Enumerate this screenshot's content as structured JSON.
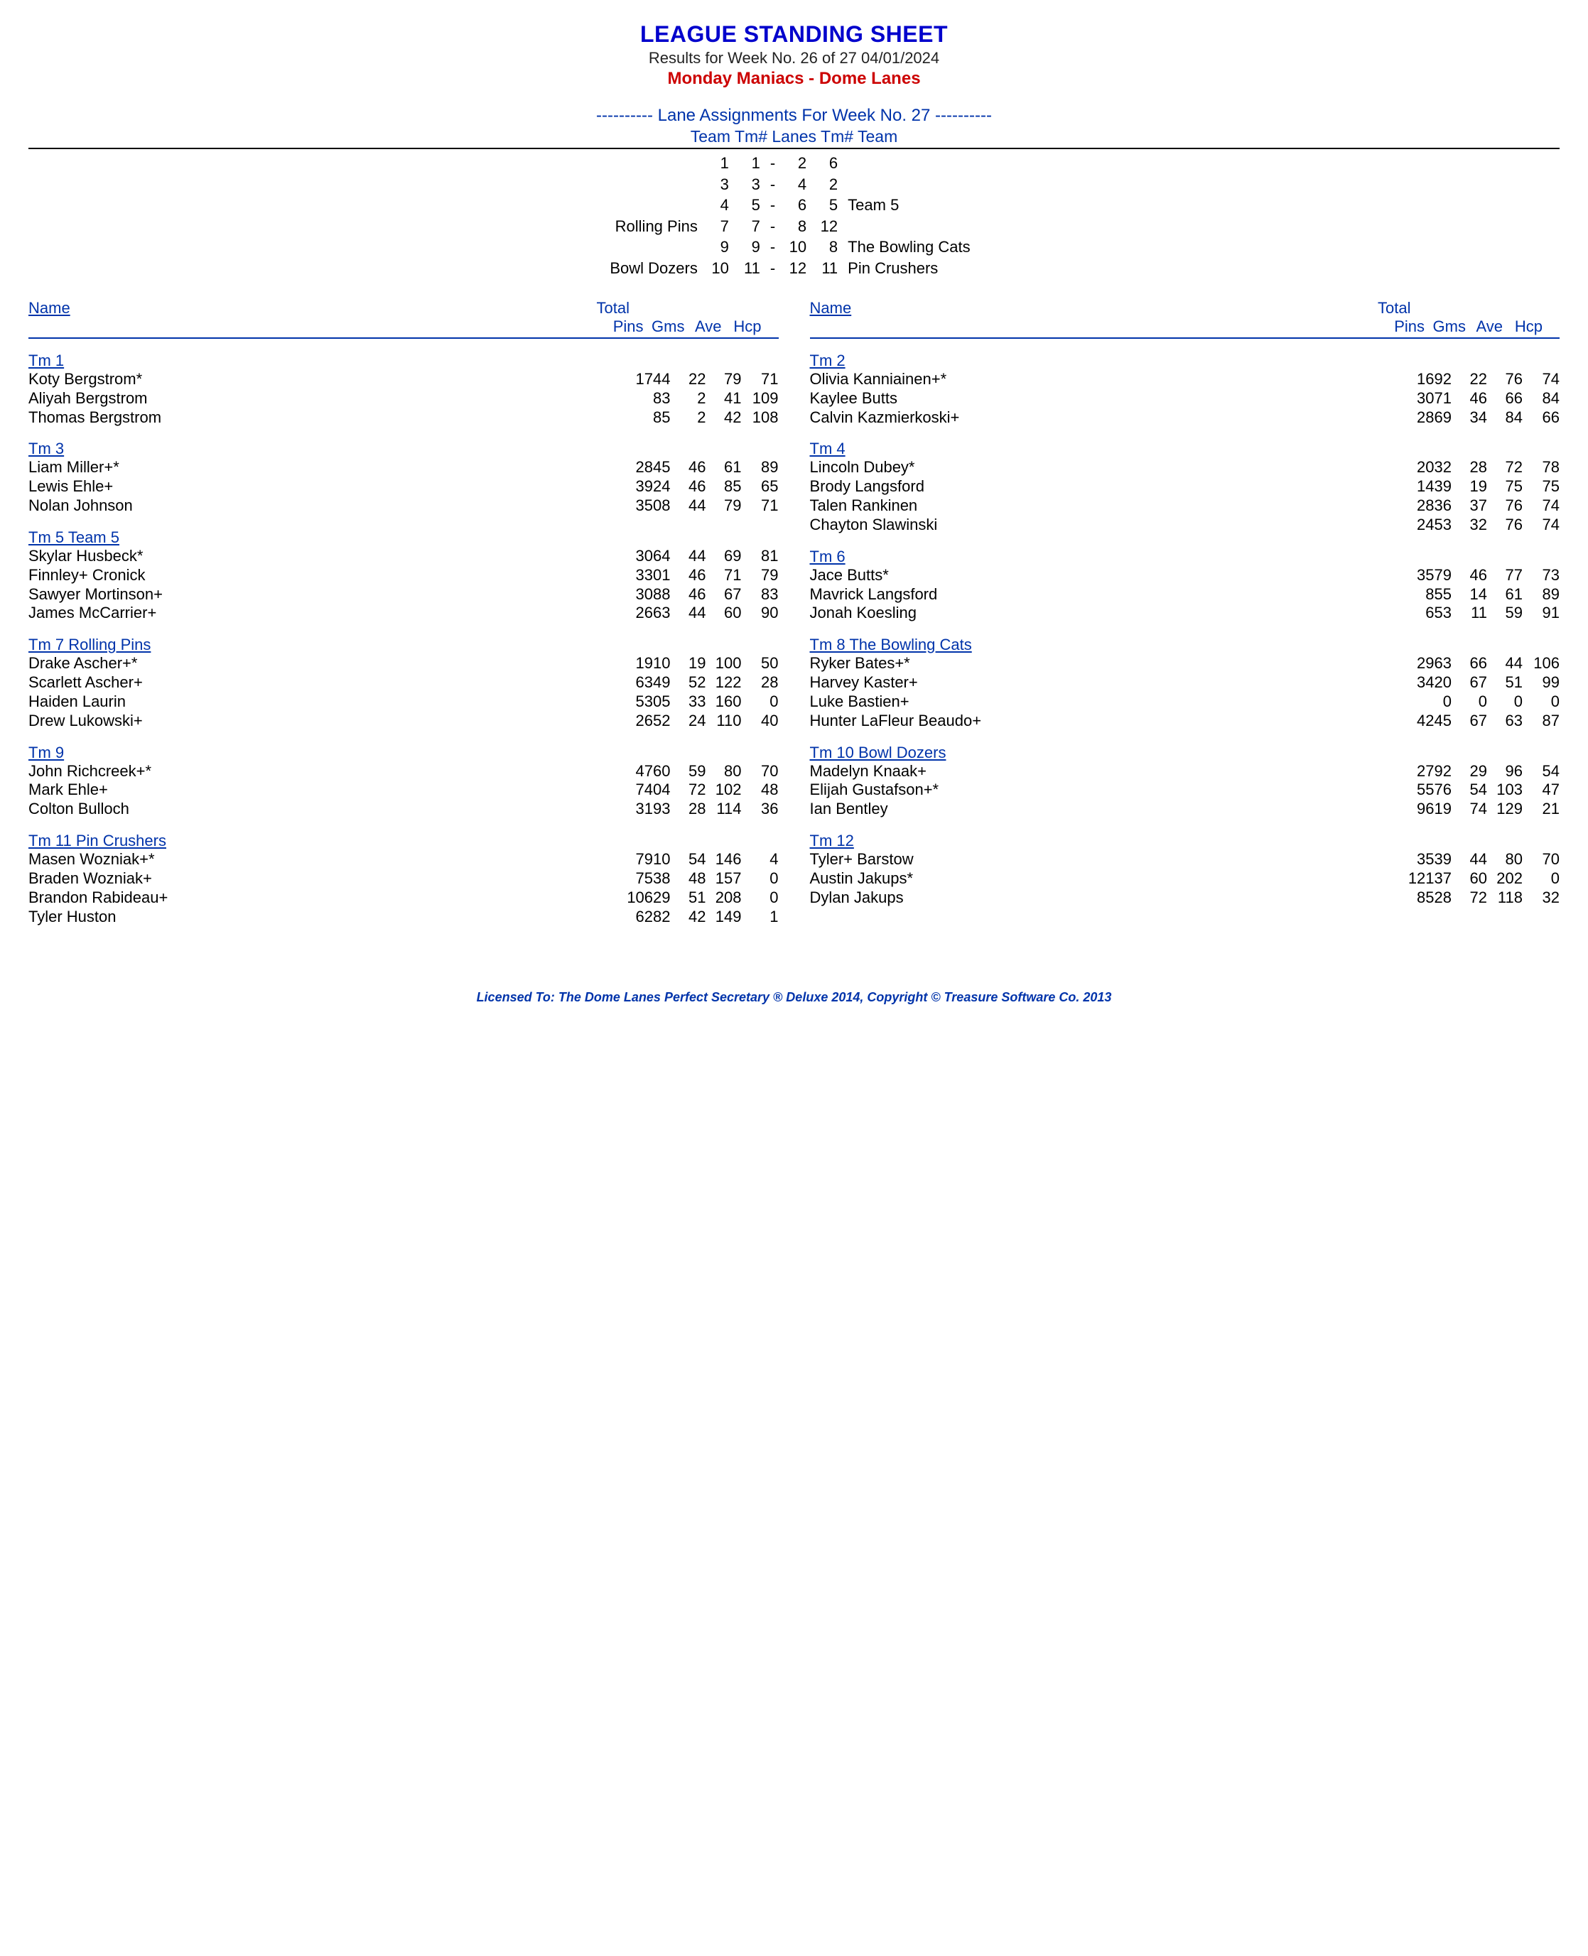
{
  "colors": {
    "title": "#0000cc",
    "accent": "#0033aa",
    "league": "#cc0000",
    "text": "#000000",
    "background": "#ffffff"
  },
  "typography": {
    "title_size": 32,
    "body_size": 22,
    "footer_size": 18,
    "font_family": "Arial"
  },
  "header": {
    "title": "LEAGUE STANDING SHEET",
    "subtitle": "Results for Week No. 26 of 27    04/01/2024",
    "league": "Monday Maniacs - Dome Lanes"
  },
  "lane_assignments": {
    "heading": "---------- Lane Assignments For Week No. 27 ----------",
    "columns": "Team    Tm#    Lanes   Tm#     Team",
    "rows": [
      {
        "lteam": "",
        "ltm": "1",
        "lanes": "1 - 2",
        "rtm": "6",
        "rteam": ""
      },
      {
        "lteam": "",
        "ltm": "3",
        "lanes": "3 - 4",
        "rtm": "2",
        "rteam": ""
      },
      {
        "lteam": "",
        "ltm": "4",
        "lanes": "5 - 6",
        "rtm": "5",
        "rteam": "Team 5"
      },
      {
        "lteam": "Rolling Pins",
        "ltm": "7",
        "lanes": "7 - 8",
        "rtm": "12",
        "rteam": ""
      },
      {
        "lteam": "",
        "ltm": "9",
        "lanes": "9 - 10",
        "rtm": "8",
        "rteam": "The Bowling Cats"
      },
      {
        "lteam": "Bowl Dozers",
        "ltm": "10",
        "lanes": "11 - 12",
        "rtm": "11",
        "rteam": "Pin Crushers"
      }
    ]
  },
  "column_headers": {
    "name": "Name",
    "total": "Total",
    "pins": "Pins",
    "gms": "Gms",
    "ave": "Ave",
    "hcp": "Hcp"
  },
  "left_teams": [
    {
      "name": "Tm 1",
      "players": [
        {
          "n": "Koty Bergstrom*",
          "pins": "1744",
          "gms": "22",
          "ave": "79",
          "hcp": "71"
        },
        {
          "n": "Aliyah Bergstrom",
          "pins": "83",
          "gms": "2",
          "ave": "41",
          "hcp": "109"
        },
        {
          "n": "Thomas Bergstrom",
          "pins": "85",
          "gms": "2",
          "ave": "42",
          "hcp": "108"
        }
      ]
    },
    {
      "name": "Tm 3",
      "players": [
        {
          "n": "Liam Miller+*",
          "pins": "2845",
          "gms": "46",
          "ave": "61",
          "hcp": "89"
        },
        {
          "n": "Lewis Ehle+",
          "pins": "3924",
          "gms": "46",
          "ave": "85",
          "hcp": "65"
        },
        {
          "n": "Nolan Johnson",
          "pins": "3508",
          "gms": "44",
          "ave": "79",
          "hcp": "71"
        }
      ]
    },
    {
      "name": "Tm 5 Team 5",
      "players": [
        {
          "n": "Skylar Husbeck*",
          "pins": "3064",
          "gms": "44",
          "ave": "69",
          "hcp": "81"
        },
        {
          "n": "Finnley+ Cronick",
          "pins": "3301",
          "gms": "46",
          "ave": "71",
          "hcp": "79"
        },
        {
          "n": "Sawyer Mortinson+",
          "pins": "3088",
          "gms": "46",
          "ave": "67",
          "hcp": "83"
        },
        {
          "n": "James McCarrier+",
          "pins": "2663",
          "gms": "44",
          "ave": "60",
          "hcp": "90"
        }
      ]
    },
    {
      "name": "Tm 7 Rolling Pins",
      "players": [
        {
          "n": "Drake Ascher+*",
          "pins": "1910",
          "gms": "19",
          "ave": "100",
          "hcp": "50"
        },
        {
          "n": "Scarlett Ascher+",
          "pins": "6349",
          "gms": "52",
          "ave": "122",
          "hcp": "28"
        },
        {
          "n": "Haiden Laurin",
          "pins": "5305",
          "gms": "33",
          "ave": "160",
          "hcp": "0"
        },
        {
          "n": "Drew Lukowski+",
          "pins": "2652",
          "gms": "24",
          "ave": "110",
          "hcp": "40"
        }
      ]
    },
    {
      "name": "Tm 9",
      "players": [
        {
          "n": "John Richcreek+*",
          "pins": "4760",
          "gms": "59",
          "ave": "80",
          "hcp": "70"
        },
        {
          "n": "Mark Ehle+",
          "pins": "7404",
          "gms": "72",
          "ave": "102",
          "hcp": "48"
        },
        {
          "n": "Colton Bulloch",
          "pins": "3193",
          "gms": "28",
          "ave": "114",
          "hcp": "36"
        }
      ]
    },
    {
      "name": "Tm 11 Pin Crushers",
      "players": [
        {
          "n": "Masen Wozniak+*",
          "pins": "7910",
          "gms": "54",
          "ave": "146",
          "hcp": "4"
        },
        {
          "n": "Braden Wozniak+",
          "pins": "7538",
          "gms": "48",
          "ave": "157",
          "hcp": "0"
        },
        {
          "n": "Brandon Rabideau+",
          "pins": "10629",
          "gms": "51",
          "ave": "208",
          "hcp": "0"
        },
        {
          "n": "Tyler Huston",
          "pins": "6282",
          "gms": "42",
          "ave": "149",
          "hcp": "1"
        }
      ]
    }
  ],
  "right_teams": [
    {
      "name": "Tm 2",
      "players": [
        {
          "n": "Olivia Kanniainen+*",
          "pins": "1692",
          "gms": "22",
          "ave": "76",
          "hcp": "74"
        },
        {
          "n": "Kaylee Butts",
          "pins": "3071",
          "gms": "46",
          "ave": "66",
          "hcp": "84"
        },
        {
          "n": "Calvin Kazmierkoski+",
          "pins": "2869",
          "gms": "34",
          "ave": "84",
          "hcp": "66"
        }
      ]
    },
    {
      "name": "Tm 4",
      "players": [
        {
          "n": "Lincoln Dubey*",
          "pins": "2032",
          "gms": "28",
          "ave": "72",
          "hcp": "78"
        },
        {
          "n": "Brody Langsford",
          "pins": "1439",
          "gms": "19",
          "ave": "75",
          "hcp": "75"
        },
        {
          "n": "Talen Rankinen",
          "pins": "2836",
          "gms": "37",
          "ave": "76",
          "hcp": "74"
        },
        {
          "n": "Chayton Slawinski",
          "pins": "2453",
          "gms": "32",
          "ave": "76",
          "hcp": "74"
        }
      ]
    },
    {
      "name": "Tm 6",
      "players": [
        {
          "n": "Jace Butts*",
          "pins": "3579",
          "gms": "46",
          "ave": "77",
          "hcp": "73"
        },
        {
          "n": "Mavrick Langsford",
          "pins": "855",
          "gms": "14",
          "ave": "61",
          "hcp": "89"
        },
        {
          "n": "Jonah Koesling",
          "pins": "653",
          "gms": "11",
          "ave": "59",
          "hcp": "91"
        }
      ]
    },
    {
      "name": "Tm 8 The Bowling Cats",
      "players": [
        {
          "n": "Ryker Bates+*",
          "pins": "2963",
          "gms": "66",
          "ave": "44",
          "hcp": "106"
        },
        {
          "n": "Harvey Kaster+",
          "pins": "3420",
          "gms": "67",
          "ave": "51",
          "hcp": "99"
        },
        {
          "n": "Luke Bastien+",
          "pins": "0",
          "gms": "0",
          "ave": "0",
          "hcp": "0"
        },
        {
          "n": "Hunter LaFleur Beaudo+",
          "pins": "4245",
          "gms": "67",
          "ave": "63",
          "hcp": "87"
        }
      ]
    },
    {
      "name": "Tm 10 Bowl Dozers",
      "players": [
        {
          "n": "Madelyn Knaak+",
          "pins": "2792",
          "gms": "29",
          "ave": "96",
          "hcp": "54"
        },
        {
          "n": "Elijah Gustafson+*",
          "pins": "5576",
          "gms": "54",
          "ave": "103",
          "hcp": "47"
        },
        {
          "n": "Ian Bentley",
          "pins": "9619",
          "gms": "74",
          "ave": "129",
          "hcp": "21"
        }
      ]
    },
    {
      "name": "Tm 12",
      "players": [
        {
          "n": "Tyler+ Barstow",
          "pins": "3539",
          "gms": "44",
          "ave": "80",
          "hcp": "70"
        },
        {
          "n": "Austin Jakups*",
          "pins": "12137",
          "gms": "60",
          "ave": "202",
          "hcp": "0"
        },
        {
          "n": "Dylan Jakups",
          "pins": "8528",
          "gms": "72",
          "ave": "118",
          "hcp": "32"
        }
      ]
    }
  ],
  "footer": "Licensed To: The Dome Lanes    Perfect Secretary ® Deluxe  2014, Copyright © Treasure Software Co. 2013"
}
